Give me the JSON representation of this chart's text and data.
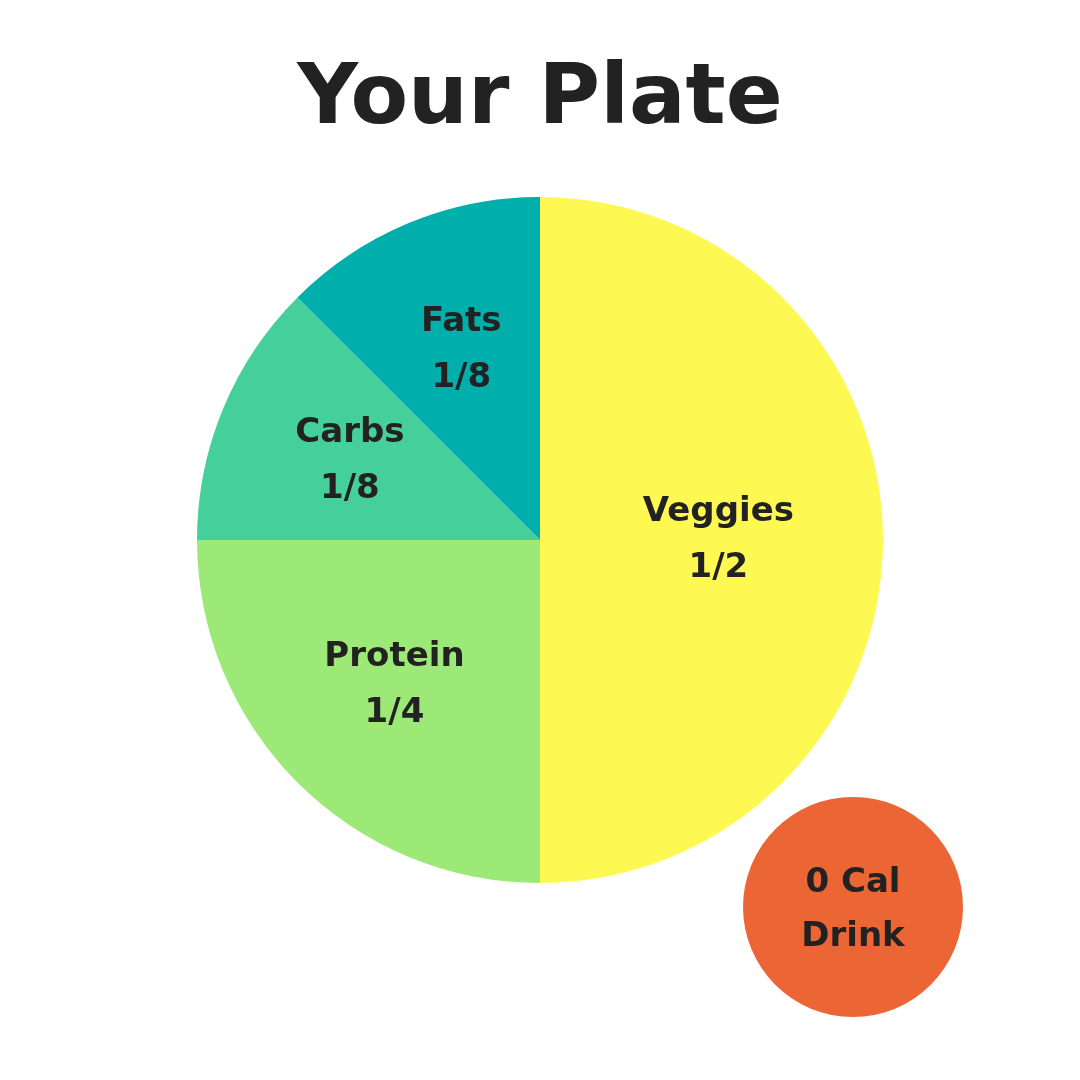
{
  "chart_data": {
    "type": "pie",
    "title": "Your Plate",
    "categories": [
      "Veggies",
      "Protein",
      "Carbs",
      "Fats"
    ],
    "values": [
      0.5,
      0.25,
      0.125,
      0.125
    ],
    "value_labels": [
      "1/2",
      "1/4",
      "1/8",
      "1/8"
    ],
    "colors": [
      "#fef952",
      "#9de977",
      "#45d09b",
      "#00aeac"
    ],
    "legend": false,
    "annotations": [
      "0 Cal Drink"
    ]
  }
}
